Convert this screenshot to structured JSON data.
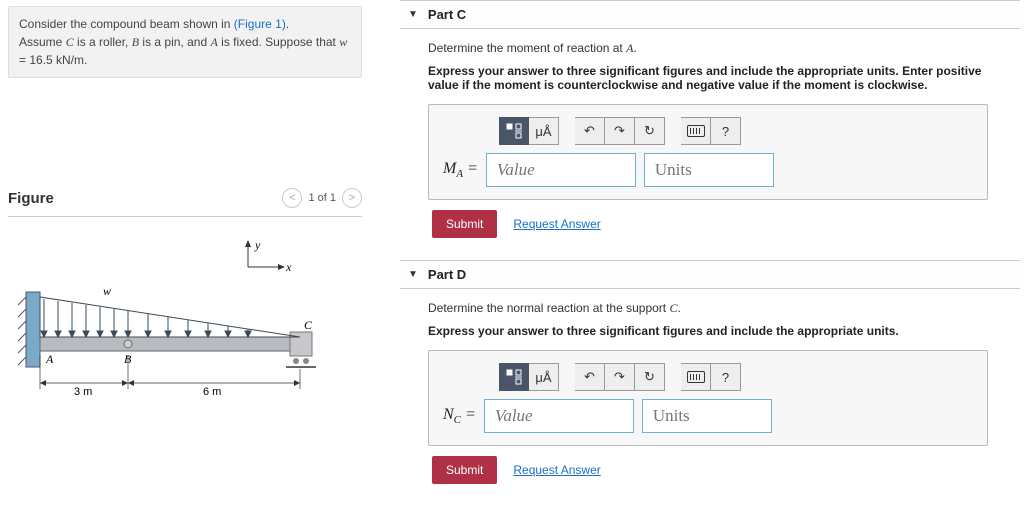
{
  "problem": {
    "text_pre": "Consider the compound beam shown in ",
    "fig_link": "(Figure 1)",
    "text_post": ".",
    "assume": "Assume C is a roller, B is a pin, and A is fixed. Suppose that w = 16.5 kN/m."
  },
  "figure": {
    "title": "Figure",
    "nav_label": "1 of 1",
    "axes": {
      "x_label": "x",
      "y_label": "y"
    },
    "beam": {
      "w_label": "w",
      "A_label": "A",
      "B_label": "B",
      "C_label": "C",
      "dim_AB": "3 m",
      "dim_BC": "6 m",
      "color_wall": "#7aa9c9",
      "color_beam": "#b8bcc0",
      "color_load": "#3a4a5a",
      "color_dim": "#333333"
    }
  },
  "parts": [
    {
      "id": "partC",
      "title": "Part C",
      "prompt": "Determine the moment of reaction at A.",
      "instr": "Express your answer to three significant figures and include the appropriate units. Enter positive value if the moment is counterclockwise and negative value if the moment is clockwise.",
      "var": "M",
      "sub": "A",
      "value_ph": "Value",
      "units_ph": "Units",
      "submit": "Submit",
      "request": "Request Answer"
    },
    {
      "id": "partD",
      "title": "Part D",
      "prompt": "Determine the normal reaction at the support C.",
      "instr": "Express your answer to three significant figures and include the appropriate units.",
      "var": "N",
      "sub": "C",
      "value_ph": "Value",
      "units_ph": "Units",
      "submit": "Submit",
      "request": "Request Answer"
    }
  ],
  "tools": {
    "frac_label": "□",
    "vec_label": "μÅ",
    "undo": "↶",
    "redo": "↷",
    "reset": "↻",
    "help": "?"
  }
}
